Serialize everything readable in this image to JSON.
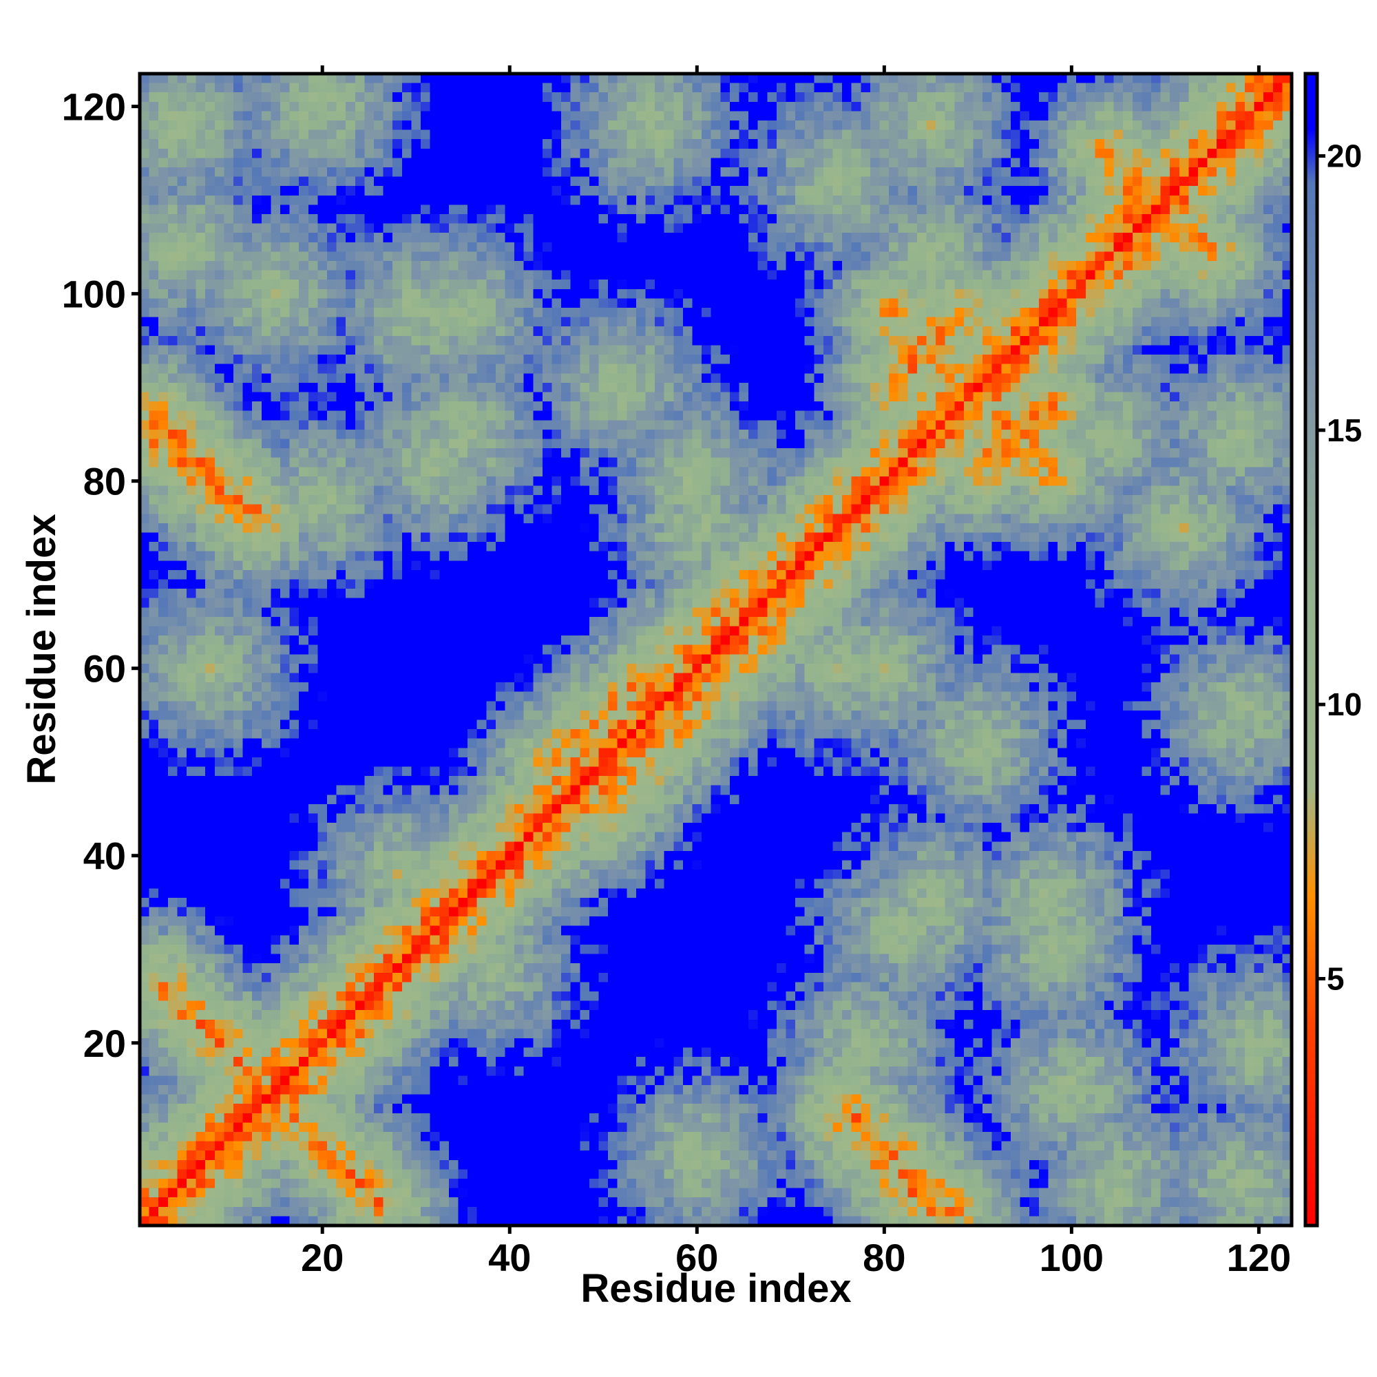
{
  "chart_data": {
    "type": "heatmap",
    "xlabel": "Residue index",
    "ylabel": "Residue index",
    "x_ticks": [
      20,
      40,
      60,
      80,
      100,
      120
    ],
    "y_ticks": [
      20,
      40,
      60,
      80,
      100,
      120
    ],
    "xlim": [
      1,
      123
    ],
    "ylim": [
      1,
      123
    ],
    "n_residues": 123,
    "colorbar": {
      "ticks": [
        5,
        10,
        15,
        20
      ],
      "range": [
        0.5,
        21.5
      ],
      "stops": [
        {
          "value": 0.5,
          "color": "#ff0000"
        },
        {
          "value": 4.0,
          "color": "#ff4000"
        },
        {
          "value": 6.5,
          "color": "#ff9000"
        },
        {
          "value": 8.5,
          "color": "#9fb88a"
        },
        {
          "value": 12.0,
          "color": "#93b38e"
        },
        {
          "value": 16.0,
          "color": "#7d94a8"
        },
        {
          "value": 19.5,
          "color": "#5578b8"
        },
        {
          "value": 20.5,
          "color": "#0000ff"
        }
      ]
    },
    "description_values": {
      "cell_value_meaning": "pairwise distance per residue pair; low values red/orange, intermediate green-grey, high (>=20) blue",
      "diagonal": [
        [
          1,
          1
        ],
        [
          123,
          123
        ]
      ],
      "contact_bands": [
        {
          "from": [
            3,
            26
          ],
          "to": [
            26,
            3
          ],
          "value": 6
        },
        {
          "from": [
            76,
            13
          ],
          "to": [
            87,
            2
          ],
          "value": 6
        },
        {
          "from": [
            81,
            98
          ],
          "to": [
            88,
            90
          ],
          "value": 6
        },
        {
          "from": [
            90,
            81
          ],
          "to": [
            98,
            88
          ],
          "value": 6
        },
        {
          "from": [
            2,
            85
          ],
          "to": [
            12,
            76
          ],
          "value": 6
        },
        {
          "from": [
            85,
            2
          ],
          "to": [
            76,
            12
          ],
          "value": 6
        },
        {
          "from": [
            106,
            112
          ],
          "to": [
            115,
            104
          ],
          "value": 6
        },
        {
          "from": [
            44,
            50
          ],
          "to": [
            72,
            75
          ],
          "value": 7
        }
      ]
    }
  },
  "colors": {
    "low": "#ff0000",
    "mid": "#9fb88a",
    "high": "#0000ff"
  }
}
